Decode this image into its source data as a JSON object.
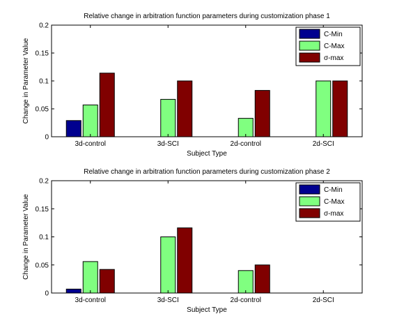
{
  "chart_data": [
    {
      "type": "bar",
      "title": "Relative change in arbitration function parameters during customization phase 1",
      "xlabel": "Subject Type",
      "ylabel": "Change in Parameter Value",
      "categories": [
        "3d-control",
        "3d-SCI",
        "2d-control",
        "2d-SCI"
      ],
      "ylim": [
        0,
        0.2
      ],
      "yticks": [
        0,
        0.05,
        0.1,
        0.15,
        0.2
      ],
      "ytick_labels": [
        "0",
        "0.05",
        "0.1",
        "0.15",
        "0.2"
      ],
      "legend_position": "top-right",
      "grid": false,
      "series": [
        {
          "name": "C-Min",
          "color": "#00008f",
          "values": [
            0.029,
            0,
            0,
            0
          ]
        },
        {
          "name": "C-Max",
          "color": "#80ff80",
          "values": [
            0.057,
            0.067,
            0.033,
            0.1
          ]
        },
        {
          "name": "σ-max",
          "color": "#800000",
          "values": [
            0.114,
            0.1,
            0.083,
            0.1
          ]
        }
      ]
    },
    {
      "type": "bar",
      "title": "Relative change in arbitration function parameters during customization phase 2",
      "xlabel": "Subject Type",
      "ylabel": "Change in Parameter Value",
      "categories": [
        "3d-control",
        "3d-SCI",
        "2d-control",
        "2d-SCI"
      ],
      "ylim": [
        0,
        0.2
      ],
      "yticks": [
        0,
        0.05,
        0.1,
        0.15,
        0.2
      ],
      "ytick_labels": [
        "0",
        "0.05",
        "0.1",
        "0.15",
        "0.2"
      ],
      "legend_position": "top-right",
      "grid": false,
      "series": [
        {
          "name": "C-Min",
          "color": "#00008f",
          "values": [
            0.007,
            0,
            0,
            0
          ]
        },
        {
          "name": "C-Max",
          "color": "#80ff80",
          "values": [
            0.056,
            0.1,
            0.04,
            0
          ]
        },
        {
          "name": "σ-max",
          "color": "#800000",
          "values": [
            0.042,
            0.116,
            0.05,
            0
          ]
        }
      ]
    }
  ]
}
